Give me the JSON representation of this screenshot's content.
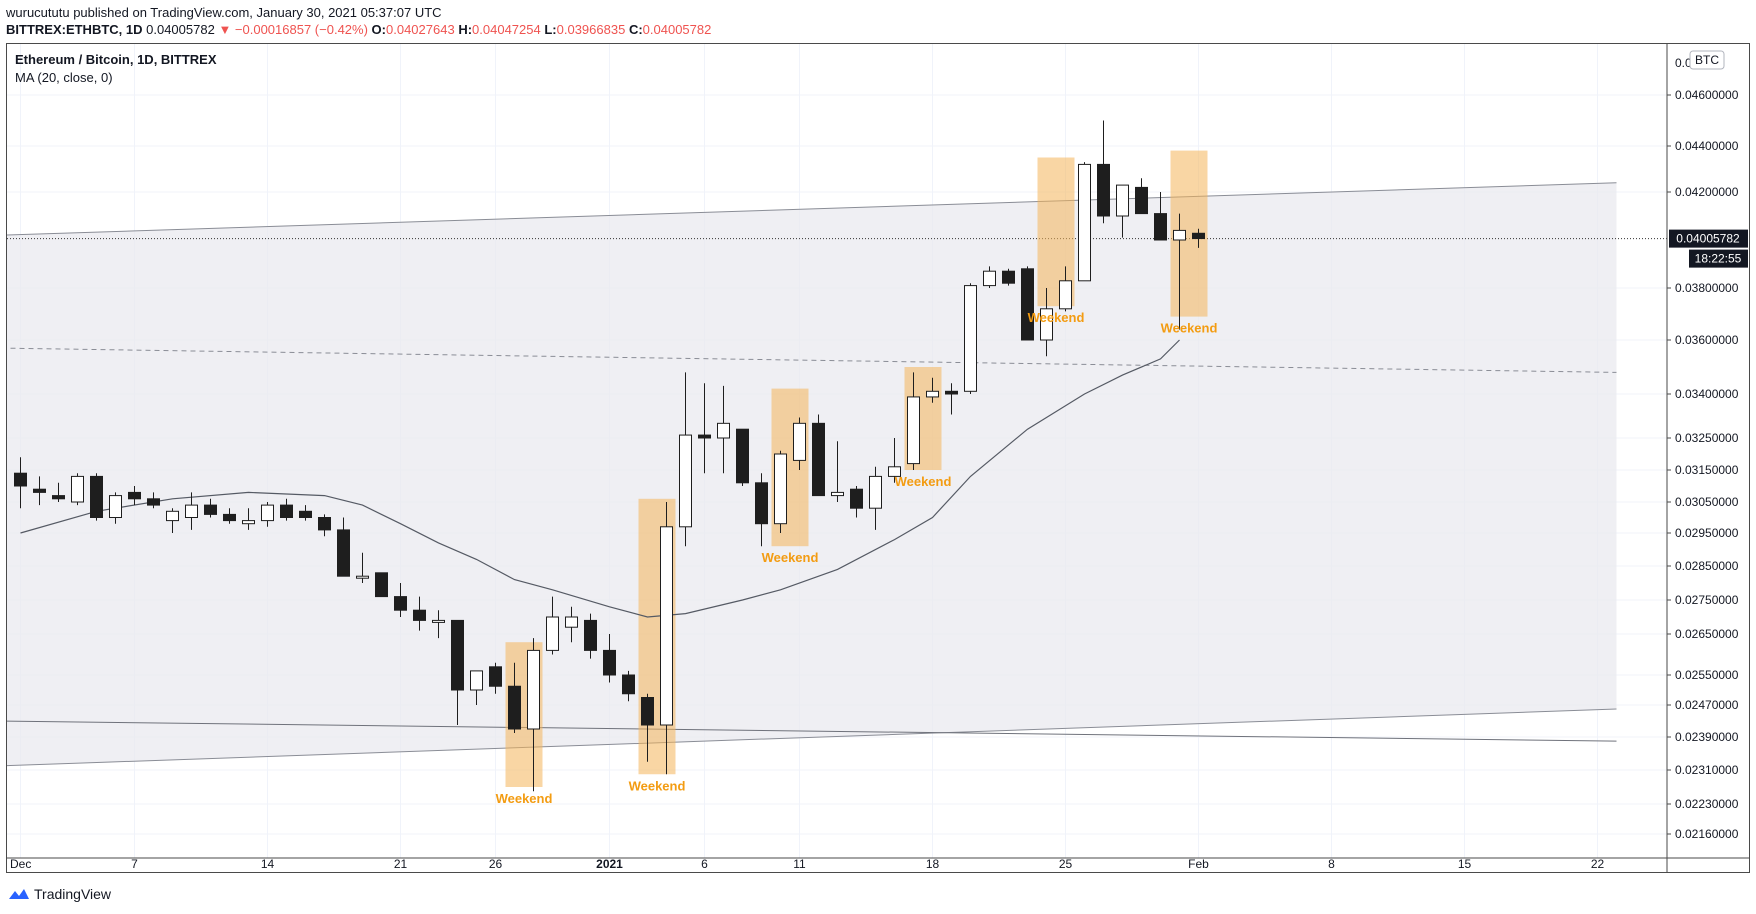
{
  "header": {
    "publisher": "wurucututu published on TradingView.com, January 30, 2021 05:37:07 UTC",
    "symbol": "BITTREX:ETHBTC, 1D",
    "price": "0.04005782",
    "change": "▼ −0.00016857 (−0.42%)",
    "open_label": "O:",
    "open": "0.04027643",
    "high_label": "H:",
    "high": "0.04047254",
    "low_label": "L:",
    "low": "0.03966835",
    "close_label": "C:",
    "close": "0.04005782"
  },
  "legend": {
    "title": "Ethereum / Bitcoin, 1D, BITTREX",
    "indicator": "MA (20, close, 0)"
  },
  "footer": {
    "brand": "TradingView"
  },
  "colors": {
    "down": "#1e1e1e",
    "up": "#ffffff",
    "weekend": "#f4b45a",
    "channel": "#d4d6de",
    "accent_red": "#ef5350",
    "weekend_text": "#f39c12"
  },
  "chart_data": {
    "type": "candlestick",
    "title": "Ethereum / Bitcoin, 1D, BITTREX",
    "currency_label": "BTC",
    "last_price": "0.04005782",
    "countdown": "18:22:55",
    "y_ticks": [
      "0.04600000",
      "0.04400000",
      "0.04200000",
      "0.03800000",
      "0.03600000",
      "0.03400000",
      "0.03250000",
      "0.03150000",
      "0.03050000",
      "0.02950000",
      "0.02850000",
      "0.02750000",
      "0.02650000",
      "0.02550000",
      "0.02470000",
      "0.02390000",
      "0.02310000",
      "0.02230000",
      "0.02160000"
    ],
    "y_tick_values": [
      0.046,
      0.044,
      0.042,
      0.038,
      0.036,
      0.034,
      0.0325,
      0.0315,
      0.0305,
      0.0295,
      0.0285,
      0.0275,
      0.0265,
      0.0255,
      0.0247,
      0.0239,
      0.0231,
      0.0223,
      0.0216
    ],
    "top_tick_partial": "0.0",
    "x_labels": [
      {
        "label": "Dec",
        "day": 0
      },
      {
        "label": "7",
        "day": 6
      },
      {
        "label": "14",
        "day": 13
      },
      {
        "label": "21",
        "day": 20
      },
      {
        "label": "26",
        "day": 25
      },
      {
        "label": "2021",
        "day": 31
      },
      {
        "label": "6",
        "day": 36
      },
      {
        "label": "11",
        "day": 41
      },
      {
        "label": "18",
        "day": 48
      },
      {
        "label": "25",
        "day": 55
      },
      {
        "label": "Feb",
        "day": 62
      },
      {
        "label": "8",
        "day": 69
      },
      {
        "label": "15",
        "day": 76
      },
      {
        "label": "22",
        "day": 83
      }
    ],
    "candles": [
      {
        "d": 0,
        "o": 0.0314,
        "h": 0.0319,
        "l": 0.0303,
        "c": 0.031
      },
      {
        "d": 1,
        "o": 0.0309,
        "h": 0.0313,
        "l": 0.0304,
        "c": 0.0308
      },
      {
        "d": 2,
        "o": 0.0307,
        "h": 0.0311,
        "l": 0.0305,
        "c": 0.0306
      },
      {
        "d": 3,
        "o": 0.0305,
        "h": 0.0314,
        "l": 0.0304,
        "c": 0.0313
      },
      {
        "d": 4,
        "o": 0.0313,
        "h": 0.0314,
        "l": 0.0299,
        "c": 0.03
      },
      {
        "d": 5,
        "o": 0.03,
        "h": 0.0308,
        "l": 0.0298,
        "c": 0.0307
      },
      {
        "d": 6,
        "o": 0.0308,
        "h": 0.031,
        "l": 0.0304,
        "c": 0.0306
      },
      {
        "d": 7,
        "o": 0.0306,
        "h": 0.0308,
        "l": 0.0303,
        "c": 0.0304
      },
      {
        "d": 8,
        "o": 0.0299,
        "h": 0.0303,
        "l": 0.0295,
        "c": 0.0302
      },
      {
        "d": 9,
        "o": 0.03,
        "h": 0.0308,
        "l": 0.0296,
        "c": 0.0304
      },
      {
        "d": 10,
        "o": 0.0304,
        "h": 0.0306,
        "l": 0.03,
        "c": 0.0301
      },
      {
        "d": 11,
        "o": 0.0301,
        "h": 0.0303,
        "l": 0.0298,
        "c": 0.0299
      },
      {
        "d": 12,
        "o": 0.0298,
        "h": 0.0303,
        "l": 0.0296,
        "c": 0.0299
      },
      {
        "d": 13,
        "o": 0.0299,
        "h": 0.0305,
        "l": 0.0297,
        "c": 0.0304
      },
      {
        "d": 14,
        "o": 0.0304,
        "h": 0.0306,
        "l": 0.0299,
        "c": 0.03
      },
      {
        "d": 15,
        "o": 0.0302,
        "h": 0.0304,
        "l": 0.0299,
        "c": 0.03
      },
      {
        "d": 16,
        "o": 0.03,
        "h": 0.0301,
        "l": 0.0294,
        "c": 0.0296
      },
      {
        "d": 17,
        "o": 0.0296,
        "h": 0.03,
        "l": 0.0282,
        "c": 0.0282
      },
      {
        "d": 18,
        "o": 0.0282,
        "h": 0.0289,
        "l": 0.028,
        "c": 0.0282
      },
      {
        "d": 19,
        "o": 0.0283,
        "h": 0.0283,
        "l": 0.0276,
        "c": 0.0276
      },
      {
        "d": 20,
        "o": 0.0276,
        "h": 0.028,
        "l": 0.027,
        "c": 0.0272
      },
      {
        "d": 21,
        "o": 0.0272,
        "h": 0.0276,
        "l": 0.0266,
        "c": 0.0269
      },
      {
        "d": 22,
        "o": 0.0269,
        "h": 0.0272,
        "l": 0.0264,
        "c": 0.0269
      },
      {
        "d": 23,
        "o": 0.0269,
        "h": 0.0269,
        "l": 0.0242,
        "c": 0.0251
      },
      {
        "d": 24,
        "o": 0.0251,
        "h": 0.0256,
        "l": 0.0247,
        "c": 0.0256
      },
      {
        "d": 25,
        "o": 0.0257,
        "h": 0.0258,
        "l": 0.025,
        "c": 0.0252
      },
      {
        "d": 26,
        "o": 0.0252,
        "h": 0.0258,
        "l": 0.024,
        "c": 0.0241
      },
      {
        "d": 27,
        "o": 0.0241,
        "h": 0.0264,
        "l": 0.0226,
        "c": 0.0261
      },
      {
        "d": 28,
        "o": 0.0261,
        "h": 0.0276,
        "l": 0.026,
        "c": 0.027
      },
      {
        "d": 29,
        "o": 0.0267,
        "h": 0.0273,
        "l": 0.0263,
        "c": 0.027
      },
      {
        "d": 30,
        "o": 0.0269,
        "h": 0.0271,
        "l": 0.0259,
        "c": 0.0261
      },
      {
        "d": 31,
        "o": 0.0261,
        "h": 0.0265,
        "l": 0.0253,
        "c": 0.0255
      },
      {
        "d": 32,
        "o": 0.0255,
        "h": 0.0256,
        "l": 0.0248,
        "c": 0.025
      },
      {
        "d": 33,
        "o": 0.0249,
        "h": 0.025,
        "l": 0.0233,
        "c": 0.0242
      },
      {
        "d": 34,
        "o": 0.0242,
        "h": 0.0305,
        "l": 0.023,
        "c": 0.0297
      },
      {
        "d": 35,
        "o": 0.0297,
        "h": 0.0348,
        "l": 0.0291,
        "c": 0.0326
      },
      {
        "d": 36,
        "o": 0.0326,
        "h": 0.0344,
        "l": 0.0314,
        "c": 0.0325
      },
      {
        "d": 37,
        "o": 0.0325,
        "h": 0.0343,
        "l": 0.0314,
        "c": 0.033
      },
      {
        "d": 38,
        "o": 0.0328,
        "h": 0.0328,
        "l": 0.031,
        "c": 0.0311
      },
      {
        "d": 39,
        "o": 0.0311,
        "h": 0.0314,
        "l": 0.0291,
        "c": 0.0298
      },
      {
        "d": 40,
        "o": 0.0298,
        "h": 0.0321,
        "l": 0.0295,
        "c": 0.032
      },
      {
        "d": 41,
        "o": 0.0318,
        "h": 0.0332,
        "l": 0.0315,
        "c": 0.033
      },
      {
        "d": 42,
        "o": 0.033,
        "h": 0.0333,
        "l": 0.0307,
        "c": 0.0307
      },
      {
        "d": 43,
        "o": 0.0307,
        "h": 0.0324,
        "l": 0.0305,
        "c": 0.0308
      },
      {
        "d": 44,
        "o": 0.0309,
        "h": 0.031,
        "l": 0.03,
        "c": 0.0303
      },
      {
        "d": 45,
        "o": 0.0303,
        "h": 0.0316,
        "l": 0.0296,
        "c": 0.0313
      },
      {
        "d": 46,
        "o": 0.0313,
        "h": 0.0325,
        "l": 0.0311,
        "c": 0.0316
      },
      {
        "d": 47,
        "o": 0.0317,
        "h": 0.0348,
        "l": 0.0315,
        "c": 0.0339
      },
      {
        "d": 48,
        "o": 0.0339,
        "h": 0.0346,
        "l": 0.0337,
        "c": 0.0341
      },
      {
        "d": 49,
        "o": 0.0341,
        "h": 0.0344,
        "l": 0.0333,
        "c": 0.034
      },
      {
        "d": 50,
        "o": 0.0341,
        "h": 0.0382,
        "l": 0.034,
        "c": 0.0381
      },
      {
        "d": 51,
        "o": 0.0381,
        "h": 0.0389,
        "l": 0.038,
        "c": 0.0387
      },
      {
        "d": 52,
        "o": 0.0387,
        "h": 0.0388,
        "l": 0.0381,
        "c": 0.0382
      },
      {
        "d": 53,
        "o": 0.0388,
        "h": 0.0389,
        "l": 0.036,
        "c": 0.036
      },
      {
        "d": 54,
        "o": 0.036,
        "h": 0.038,
        "l": 0.0354,
        "c": 0.0372
      },
      {
        "d": 55,
        "o": 0.0372,
        "h": 0.0389,
        "l": 0.0371,
        "c": 0.0383
      },
      {
        "d": 56,
        "o": 0.0383,
        "h": 0.0433,
        "l": 0.0383,
        "c": 0.0432
      },
      {
        "d": 57,
        "o": 0.0432,
        "h": 0.045,
        "l": 0.0407,
        "c": 0.041
      },
      {
        "d": 58,
        "o": 0.041,
        "h": 0.0423,
        "l": 0.0401,
        "c": 0.0423
      },
      {
        "d": 59,
        "o": 0.0422,
        "h": 0.0426,
        "l": 0.0411,
        "c": 0.0411
      },
      {
        "d": 60,
        "o": 0.0411,
        "h": 0.042,
        "l": 0.04,
        "c": 0.04
      },
      {
        "d": 61,
        "o": 0.04,
        "h": 0.0411,
        "l": 0.0364,
        "c": 0.0404
      },
      {
        "d": 62,
        "o": 0.04028,
        "h": 0.04047,
        "l": 0.03967,
        "c": 0.04006
      }
    ],
    "ma_period": 20,
    "ma": [
      [
        0,
        0.0295
      ],
      [
        4,
        0.0302
      ],
      [
        8,
        0.0306
      ],
      [
        12,
        0.0308
      ],
      [
        16,
        0.0307
      ],
      [
        18,
        0.0304
      ],
      [
        20,
        0.0298
      ],
      [
        22,
        0.0292
      ],
      [
        24,
        0.0287
      ],
      [
        26,
        0.0281
      ],
      [
        28,
        0.0278
      ],
      [
        31,
        0.0273
      ],
      [
        33,
        0.027
      ],
      [
        35,
        0.0271
      ],
      [
        38,
        0.0275
      ],
      [
        40,
        0.0278
      ],
      [
        43,
        0.0284
      ],
      [
        46,
        0.0293
      ],
      [
        48,
        0.03
      ],
      [
        50,
        0.0313
      ],
      [
        53,
        0.0328
      ],
      [
        56,
        0.034
      ],
      [
        58,
        0.0347
      ],
      [
        60,
        0.0353
      ],
      [
        61,
        0.036
      ]
    ],
    "channel": {
      "upper": [
        [
          -1,
          0.0402
        ],
        [
          84,
          0.0424
        ]
      ],
      "lower": [
        [
          -1,
          0.0232
        ],
        [
          84,
          0.0246
        ]
      ],
      "midline": [
        [
          -1,
          0.0357
        ],
        [
          84,
          0.0348
        ]
      ],
      "support": [
        [
          -1,
          0.0243
        ],
        [
          84,
          0.0238
        ]
      ]
    },
    "weekend_zones": [
      {
        "label": "Weekend",
        "start": 26,
        "end": 27,
        "top": 0.0263,
        "bottom": 0.0227
      },
      {
        "label": "Weekend",
        "start": 33,
        "end": 34,
        "top": 0.0306,
        "bottom": 0.023
      },
      {
        "label": "Weekend",
        "start": 40,
        "end": 41,
        "top": 0.0342,
        "bottom": 0.0291
      },
      {
        "label": "Weekend",
        "start": 47,
        "end": 48,
        "top": 0.035,
        "bottom": 0.0315
      },
      {
        "label": "Weekend",
        "start": 54,
        "end": 55,
        "top": 0.0435,
        "bottom": 0.0373
      },
      {
        "label": "Weekend",
        "start": 61,
        "end": 62,
        "top": 0.0438,
        "bottom": 0.0369
      }
    ]
  }
}
